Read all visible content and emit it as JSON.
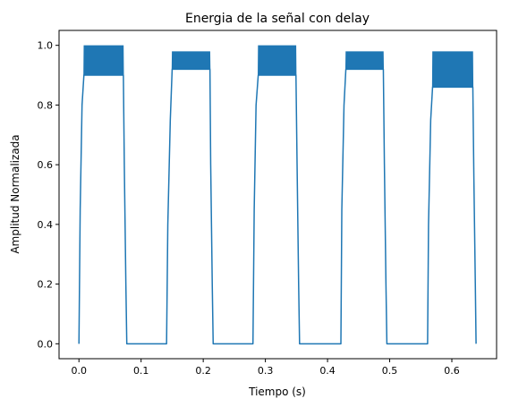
{
  "chart_data": {
    "type": "line",
    "title": "Energia de la señal con delay",
    "xlabel": "Tiempo (s)",
    "ylabel": "Amplitud Normalizada",
    "xlim": [
      -0.032,
      0.672
    ],
    "ylim": [
      -0.05,
      1.05
    ],
    "xticks": [
      0.0,
      0.1,
      0.2,
      0.3,
      0.4,
      0.5,
      0.6
    ],
    "xtick_labels": [
      "0.0",
      "0.1",
      "0.2",
      "0.3",
      "0.4",
      "0.5",
      "0.6"
    ],
    "yticks": [
      0.0,
      0.2,
      0.4,
      0.6,
      0.8,
      1.0
    ],
    "ytick_labels": [
      "0.0",
      "0.2",
      "0.4",
      "0.6",
      "0.8",
      "1.0"
    ],
    "grid": false,
    "line_color": "#1f77b4",
    "series": [
      {
        "x": [
          0.0,
          0.002,
          0.005,
          0.008,
          0.0715,
          0.073,
          0.0755,
          0.077,
          0.141,
          0.143,
          0.147,
          0.15,
          0.2108,
          0.212,
          0.2145,
          0.216,
          0.28,
          0.282,
          0.285,
          0.2885,
          0.3492,
          0.351,
          0.3535,
          0.355,
          0.4215,
          0.423,
          0.4265,
          0.4295,
          0.4898,
          0.4915,
          0.494,
          0.4955,
          0.561,
          0.5625,
          0.566,
          0.569,
          0.6338,
          0.6355,
          0.6378,
          0.639
        ],
        "y": [
          0.0,
          0.45,
          0.8,
          0.9,
          0.9,
          0.6,
          0.2,
          0.0,
          0.0,
          0.4,
          0.75,
          0.92,
          0.92,
          0.6,
          0.2,
          0.0,
          0.0,
          0.45,
          0.8,
          0.9,
          0.9,
          0.6,
          0.2,
          0.0,
          0.0,
          0.45,
          0.8,
          0.92,
          0.92,
          0.6,
          0.2,
          0.0,
          0.0,
          0.4,
          0.75,
          0.86,
          0.86,
          0.55,
          0.2,
          0.0
        ]
      }
    ],
    "oscillation_bands": [
      {
        "x_start": 0.008,
        "x_end": 0.0715,
        "low": 0.9,
        "high": 1.0
      },
      {
        "x_start": 0.15,
        "x_end": 0.2108,
        "low": 0.92,
        "high": 0.98
      },
      {
        "x_start": 0.2885,
        "x_end": 0.3492,
        "low": 0.9,
        "high": 1.0
      },
      {
        "x_start": 0.4295,
        "x_end": 0.4898,
        "low": 0.92,
        "high": 0.98
      },
      {
        "x_start": 0.569,
        "x_end": 0.6338,
        "low": 0.86,
        "high": 0.98
      }
    ]
  }
}
